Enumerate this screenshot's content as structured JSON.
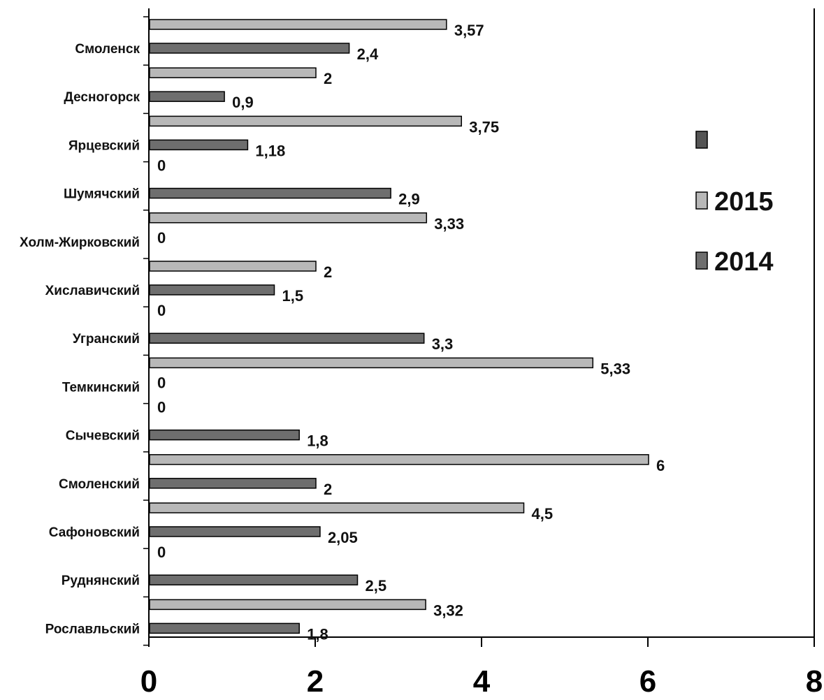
{
  "chart_data": {
    "type": "bar",
    "orientation": "horizontal",
    "title": "",
    "xlabel": "",
    "ylabel": "",
    "xlim": [
      0,
      8
    ],
    "xticks": [
      "0",
      "2",
      "4",
      "6",
      "8"
    ],
    "grid": false,
    "legend_position": "right",
    "categories": [
      "Смоленск",
      "Десногорск",
      "Ярцевский",
      "Шумячский",
      "Холм-Жирковский",
      "Хиславичский",
      "Угранский",
      "Темкинский",
      "Сычевский",
      "Смоленский",
      "Сафоновский",
      "Руднянский",
      "Рославльский"
    ],
    "series": [
      {
        "name": "2015",
        "color": "#b8b8b8",
        "values": [
          3.57,
          2,
          3.75,
          0,
          3.33,
          2,
          0,
          5.33,
          0,
          6,
          4.5,
          0,
          3.32
        ],
        "labels": [
          "3,57",
          "2",
          "3,75",
          "0",
          "3,33",
          "2",
          "0",
          "5,33",
          "0",
          "6",
          "4,5",
          "0",
          "3,32"
        ]
      },
      {
        "name": "2014",
        "color": "#6e6e6e",
        "values": [
          2.4,
          0.9,
          1.18,
          2.9,
          0,
          1.5,
          3.3,
          0,
          1.8,
          2,
          2.05,
          2.5,
          1.8
        ],
        "labels": [
          "2,4",
          "0,9",
          "1,18",
          "2,9",
          "0",
          "1,5",
          "3,3",
          "0",
          "1,8",
          "2",
          "2,05",
          "2,5",
          "1,8"
        ]
      }
    ],
    "legend": [
      {
        "name": "",
        "color": "#555555"
      },
      {
        "name": "2015",
        "color": "#b8b8b8"
      },
      {
        "name": "2014",
        "color": "#6e6e6e"
      }
    ]
  }
}
